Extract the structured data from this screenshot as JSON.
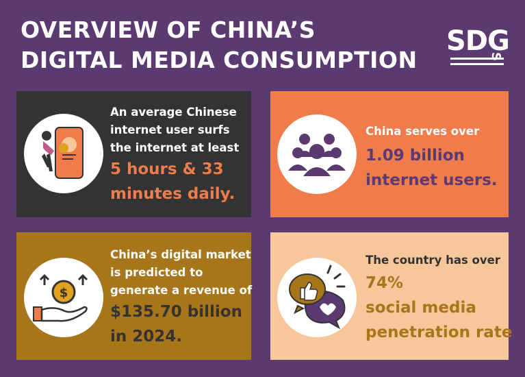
{
  "title": {
    "line1": "OVERVIEW OF CHINA’S",
    "line2": "DIGITAL MEDIA CONSUMPTION"
  },
  "logo": {
    "main": "SDG",
    "side": "S"
  },
  "cards": [
    {
      "lines": [
        "An average Chinese",
        "internet user surfs",
        "the internet at least"
      ],
      "highlight": [
        "5 hours & 33",
        "minutes daily."
      ],
      "icon": "woman-with-phone-icon",
      "colors": {
        "bg": "#333333",
        "text": "#ffffff",
        "highlight": "#f07c4b"
      }
    },
    {
      "lines": [
        "China serves over"
      ],
      "highlight": [
        "1.09 billion",
        "internet users."
      ],
      "icon": "users-group-icon",
      "colors": {
        "bg": "#f07c4b",
        "text": "#ffffff",
        "highlight": "#5b3a72"
      }
    },
    {
      "lines": [
        "China’s digital market",
        "is predicted to",
        "generate a revenue of"
      ],
      "highlight": [
        "$135.70 billion",
        "in 2024."
      ],
      "icon": "money-growth-icon",
      "colors": {
        "bg": "#a8761a",
        "text": "#ffffff",
        "highlight": "#333333"
      }
    },
    {
      "lines": [
        "The country has over"
      ],
      "highlight": [
        "74%",
        "social media",
        "penetration rate"
      ],
      "icon": "social-media-chat-icon",
      "colors": {
        "bg": "#f7c79b",
        "text": "#333333",
        "highlight": "#a8761a"
      }
    }
  ]
}
